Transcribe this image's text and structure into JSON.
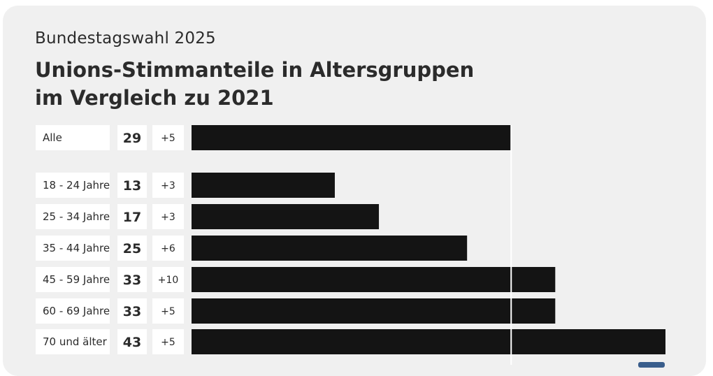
{
  "header": {
    "supertitle": "Bundestagswahl 2025",
    "title_line1": "Unions-Stimmanteile in Altersgruppen",
    "title_line2": "im Vergleich zu 2021"
  },
  "colors": {
    "card_background": "#f0f0f0",
    "bar": "#141414",
    "label_cell": "#ffffff",
    "reference_line": "#ffffff"
  },
  "chart_data": {
    "type": "bar",
    "orientation": "horizontal",
    "categories": [
      "Alle",
      "18 - 24 Jahre",
      "25 - 34 Jahre",
      "35 - 44 Jahre",
      "45 - 59 Jahre",
      "60 - 69 Jahre",
      "70 und älter"
    ],
    "values": [
      29,
      13,
      17,
      25,
      33,
      33,
      43
    ],
    "value_labels": [
      "29",
      "13",
      "17",
      "25",
      "33",
      "33",
      "43"
    ],
    "change_labels": [
      "+5",
      "+3",
      "+3",
      "+6",
      "+10",
      "+5",
      "+5"
    ],
    "reference_value": 29,
    "xlim": [
      0,
      43
    ],
    "grid": false,
    "legend": "none"
  }
}
